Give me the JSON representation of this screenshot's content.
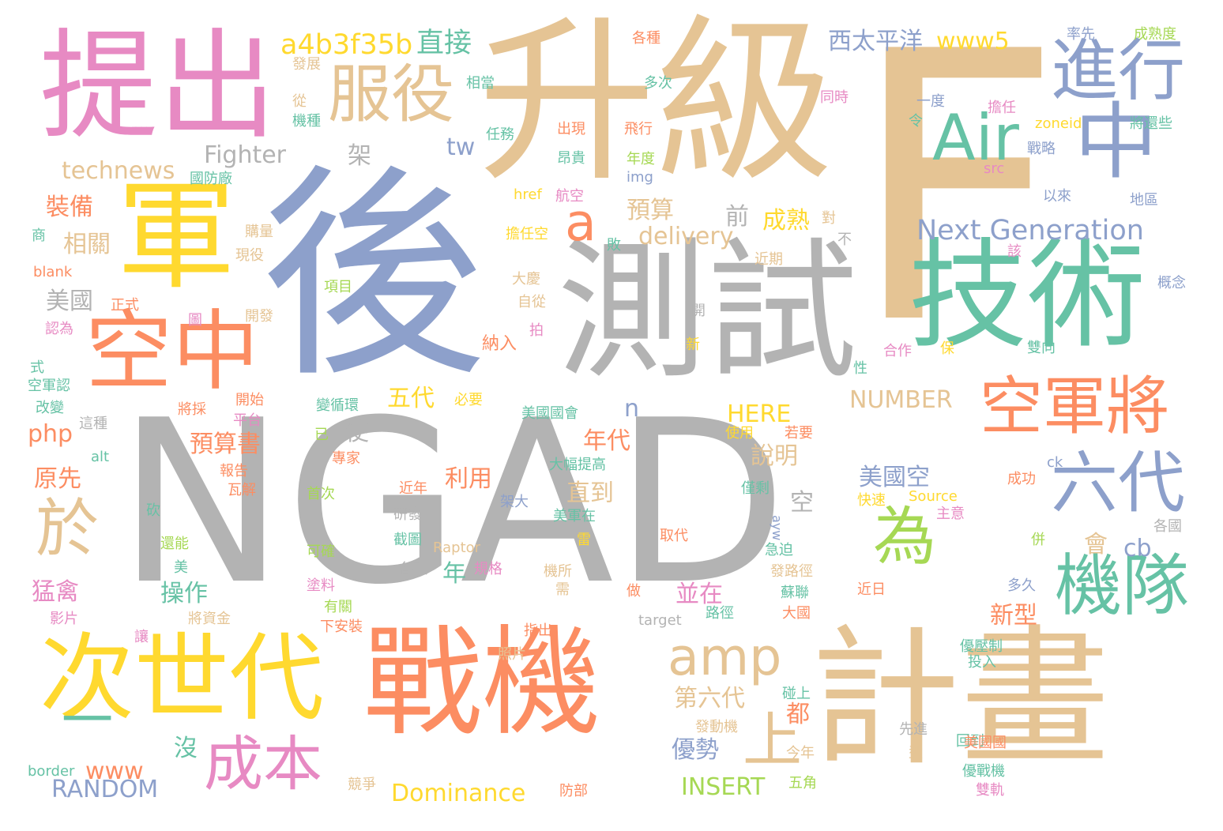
{
  "palette": {
    "pink": "#e78ac3",
    "orange": "#fc8d62",
    "blue": "#8da0cb",
    "green": "#66c2a5",
    "tan": "#e5c494",
    "yellow": "#ffd92f",
    "gray": "#b3b3b3",
    "lime": "#a6d854"
  },
  "words": [
    {
      "text": "NGAD",
      "color": "gray"
    },
    {
      "text": "後",
      "color": "blue"
    },
    {
      "text": "F",
      "color": "tan"
    },
    {
      "text": "升級",
      "color": "tan"
    },
    {
      "text": "提出",
      "color": "pink"
    },
    {
      "text": "計畫",
      "color": "tan"
    },
    {
      "text": "戰機",
      "color": "orange"
    },
    {
      "text": "測試",
      "color": "gray"
    },
    {
      "text": "技術",
      "color": "green"
    },
    {
      "text": "次世代",
      "color": "yellow"
    },
    {
      "text": "空中",
      "color": "orange"
    },
    {
      "text": "軍",
      "color": "yellow"
    },
    {
      "text": "中",
      "color": "blue"
    },
    {
      "text": "進行",
      "color": "blue"
    },
    {
      "text": "空軍將",
      "color": "orange"
    },
    {
      "text": "服役",
      "color": "tan"
    },
    {
      "text": "機隊",
      "color": "green"
    },
    {
      "text": "六代",
      "color": "blue"
    },
    {
      "text": "Air",
      "color": "green"
    },
    {
      "text": "amp",
      "color": "tan"
    },
    {
      "text": "成本",
      "color": "pink"
    },
    {
      "text": "為",
      "color": "lime"
    },
    {
      "text": "於",
      "color": "tan"
    },
    {
      "text": "一",
      "color": "green"
    },
    {
      "text": "上",
      "color": "tan"
    },
    {
      "text": "a",
      "color": "orange"
    },
    {
      "text": "Next Generation",
      "color": "blue"
    },
    {
      "text": "a4b3f35b",
      "color": "yellow"
    },
    {
      "text": "直接",
      "color": "green"
    },
    {
      "text": "西太平洋",
      "color": "blue"
    },
    {
      "text": "www5",
      "color": "yellow"
    },
    {
      "text": "Fighter",
      "color": "gray"
    },
    {
      "text": "technews",
      "color": "tan"
    },
    {
      "text": "tw",
      "color": "blue"
    },
    {
      "text": "架",
      "color": "gray"
    },
    {
      "text": "delivery",
      "color": "tan"
    },
    {
      "text": "裝備",
      "color": "orange"
    },
    {
      "text": "相關",
      "color": "tan"
    },
    {
      "text": "美國",
      "color": "gray"
    },
    {
      "text": "預算",
      "color": "tan"
    },
    {
      "text": "成熟",
      "color": "yellow"
    },
    {
      "text": "前",
      "color": "gray"
    },
    {
      "text": "NUMBER",
      "color": "tan"
    },
    {
      "text": "HERE",
      "color": "yellow"
    },
    {
      "text": "五代",
      "color": "yellow"
    },
    {
      "text": "n",
      "color": "blue"
    },
    {
      "text": "使",
      "color": "gray"
    },
    {
      "text": "php",
      "color": "orange"
    },
    {
      "text": "預算書",
      "color": "orange"
    },
    {
      "text": "年代",
      "color": "orange"
    },
    {
      "text": "說明",
      "color": "tan"
    },
    {
      "text": "原先",
      "color": "orange"
    },
    {
      "text": "利用",
      "color": "orange"
    },
    {
      "text": "直到",
      "color": "tan"
    },
    {
      "text": "美國空",
      "color": "blue"
    },
    {
      "text": "空",
      "color": "gray"
    },
    {
      "text": "會",
      "color": "tan"
    },
    {
      "text": "cb",
      "color": "blue"
    },
    {
      "text": "年",
      "color": "green"
    },
    {
      "text": "猛禽",
      "color": "pink"
    },
    {
      "text": "操作",
      "color": "green"
    },
    {
      "text": "並在",
      "color": "pink"
    },
    {
      "text": "新型",
      "color": "orange"
    },
    {
      "text": "第六代",
      "color": "tan"
    },
    {
      "text": "都",
      "color": "orange"
    },
    {
      "text": "優勢",
      "color": "blue"
    },
    {
      "text": "沒",
      "color": "green"
    },
    {
      "text": "www",
      "color": "orange"
    },
    {
      "text": "RANDOM",
      "color": "blue"
    },
    {
      "text": "Dominance",
      "color": "yellow"
    },
    {
      "text": "INSERT",
      "color": "lime"
    },
    {
      "text": "納入",
      "color": "orange"
    },
    {
      "text": "自從",
      "color": "tan"
    },
    {
      "text": "大慶",
      "color": "tan"
    },
    {
      "text": "項目",
      "color": "lime"
    },
    {
      "text": "擔任空",
      "color": "yellow"
    },
    {
      "text": "航空",
      "color": "pink"
    },
    {
      "text": "href",
      "color": "yellow"
    },
    {
      "text": "任務",
      "color": "green"
    },
    {
      "text": "出現",
      "color": "orange"
    },
    {
      "text": "飛行",
      "color": "orange"
    },
    {
      "text": "昂貴",
      "color": "green"
    },
    {
      "text": "年度",
      "color": "lime"
    },
    {
      "text": "img",
      "color": "blue"
    },
    {
      "text": "各種",
      "color": "orange"
    },
    {
      "text": "多次",
      "color": "green"
    },
    {
      "text": "相當",
      "color": "green"
    },
    {
      "text": "發展",
      "color": "tan"
    },
    {
      "text": "從",
      "color": "tan"
    },
    {
      "text": "機種",
      "color": "green"
    },
    {
      "text": "國防廠",
      "color": "green"
    },
    {
      "text": "購量",
      "color": "tan"
    },
    {
      "text": "現役",
      "color": "tan"
    },
    {
      "text": "近期",
      "color": "tan"
    },
    {
      "text": "開發",
      "color": "tan"
    },
    {
      "text": "圖",
      "color": "pink"
    },
    {
      "text": "正式",
      "color": "orange"
    },
    {
      "text": "認為",
      "color": "pink"
    },
    {
      "text": "blank",
      "color": "orange"
    },
    {
      "text": "商",
      "color": "green"
    },
    {
      "text": "式",
      "color": "green"
    },
    {
      "text": "空軍認",
      "color": "green"
    },
    {
      "text": "改變",
      "color": "green"
    },
    {
      "text": "這種",
      "color": "gray"
    },
    {
      "text": "將採",
      "color": "orange"
    },
    {
      "text": "開始",
      "color": "orange"
    },
    {
      "text": "平台",
      "color": "pink"
    },
    {
      "text": "變循環",
      "color": "green"
    },
    {
      "text": "必要",
      "color": "yellow"
    },
    {
      "text": "美國國會",
      "color": "green"
    },
    {
      "text": "已",
      "color": "lime"
    },
    {
      "text": "專家",
      "color": "orange"
    },
    {
      "text": "報告",
      "color": "orange"
    },
    {
      "text": "瓦解",
      "color": "orange"
    },
    {
      "text": "首次",
      "color": "lime"
    },
    {
      "text": "近年",
      "color": "orange"
    },
    {
      "text": "架大",
      "color": "blue"
    },
    {
      "text": "大幅提高",
      "color": "green"
    },
    {
      "text": "美軍在",
      "color": "green"
    },
    {
      "text": "研發",
      "color": "gray"
    },
    {
      "text": "截圖",
      "color": "green"
    },
    {
      "text": "Raptor",
      "color": "tan"
    },
    {
      "text": "取代",
      "color": "orange"
    },
    {
      "text": "各項",
      "color": "gray"
    },
    {
      "text": "規格",
      "color": "pink"
    },
    {
      "text": "機所",
      "color": "tan"
    },
    {
      "text": "雷",
      "color": "yellow"
    },
    {
      "text": "砍",
      "color": "green"
    },
    {
      "text": "還能",
      "color": "lime"
    },
    {
      "text": "可確",
      "color": "lime"
    },
    {
      "text": "美",
      "color": "green"
    },
    {
      "text": "塗料",
      "color": "pink"
    },
    {
      "text": "有關",
      "color": "lime"
    },
    {
      "text": "將資金",
      "color": "tan"
    },
    {
      "text": "下安裝",
      "color": "orange"
    },
    {
      "text": "影片",
      "color": "pink"
    },
    {
      "text": "讓",
      "color": "pink"
    },
    {
      "text": "指出",
      "color": "orange"
    },
    {
      "text": "照片",
      "color": "tan"
    },
    {
      "text": "需",
      "color": "tan"
    },
    {
      "text": "做",
      "color": "orange"
    },
    {
      "text": "路徑",
      "color": "green"
    },
    {
      "text": "target",
      "color": "gray"
    },
    {
      "text": "大國",
      "color": "orange"
    },
    {
      "text": "蘇聯",
      "color": "green"
    },
    {
      "text": "發路徑",
      "color": "tan"
    },
    {
      "text": "急迫",
      "color": "green"
    },
    {
      "text": "ayw",
      "color": "blue"
    },
    {
      "text": "碰上",
      "color": "green"
    },
    {
      "text": "發動機",
      "color": "tan"
    },
    {
      "text": "今年",
      "color": "tan"
    },
    {
      "text": "競爭",
      "color": "tan"
    },
    {
      "text": "防部",
      "color": "orange"
    },
    {
      "text": "border",
      "color": "green"
    },
    {
      "text": "五角",
      "color": "lime"
    },
    {
      "text": "型",
      "color": "tan"
    },
    {
      "text": "先進",
      "color": "gray"
    },
    {
      "text": "回到",
      "color": "green"
    },
    {
      "text": "美國國",
      "color": "orange"
    },
    {
      "text": "優戰機",
      "color": "green"
    },
    {
      "text": "雙軌",
      "color": "pink"
    },
    {
      "text": "投入",
      "color": "green"
    },
    {
      "text": "優壓制",
      "color": "green"
    },
    {
      "text": "多久",
      "color": "blue"
    },
    {
      "text": "近日",
      "color": "orange"
    },
    {
      "text": "併",
      "color": "lime"
    },
    {
      "text": "各國",
      "color": "gray"
    },
    {
      "text": "主意",
      "color": "pink"
    },
    {
      "text": "成功",
      "color": "orange"
    },
    {
      "text": "ck",
      "color": "blue"
    },
    {
      "text": "Source",
      "color": "yellow"
    },
    {
      "text": "快速",
      "color": "yellow"
    },
    {
      "text": "僅剩",
      "color": "green"
    },
    {
      "text": "若要",
      "color": "orange"
    },
    {
      "text": "使用",
      "color": "yellow"
    },
    {
      "text": "保",
      "color": "yellow"
    },
    {
      "text": "合作",
      "color": "pink"
    },
    {
      "text": "雙向",
      "color": "green"
    },
    {
      "text": "性",
      "color": "green"
    },
    {
      "text": "新",
      "color": "yellow"
    },
    {
      "text": "開",
      "color": "gray"
    },
    {
      "text": "概念",
      "color": "blue"
    },
    {
      "text": "該",
      "color": "pink"
    },
    {
      "text": "以來",
      "color": "blue"
    },
    {
      "text": "地區",
      "color": "blue"
    },
    {
      "text": "src",
      "color": "pink"
    },
    {
      "text": "zoneid",
      "color": "yellow"
    },
    {
      "text": "戰略",
      "color": "blue"
    },
    {
      "text": "擔任",
      "color": "pink"
    },
    {
      "text": "將還些",
      "color": "green"
    },
    {
      "text": "成熟度",
      "color": "lime"
    },
    {
      "text": "率先",
      "color": "blue"
    },
    {
      "text": "同時",
      "color": "pink"
    },
    {
      "text": "令",
      "color": "green"
    },
    {
      "text": "一度",
      "color": "blue"
    },
    {
      "text": "不",
      "color": "gray"
    },
    {
      "text": "對",
      "color": "tan"
    },
    {
      "text": "敗",
      "color": "green"
    },
    {
      "text": "alt",
      "color": "green"
    },
    {
      "text": "拍",
      "color": "pink"
    }
  ]
}
